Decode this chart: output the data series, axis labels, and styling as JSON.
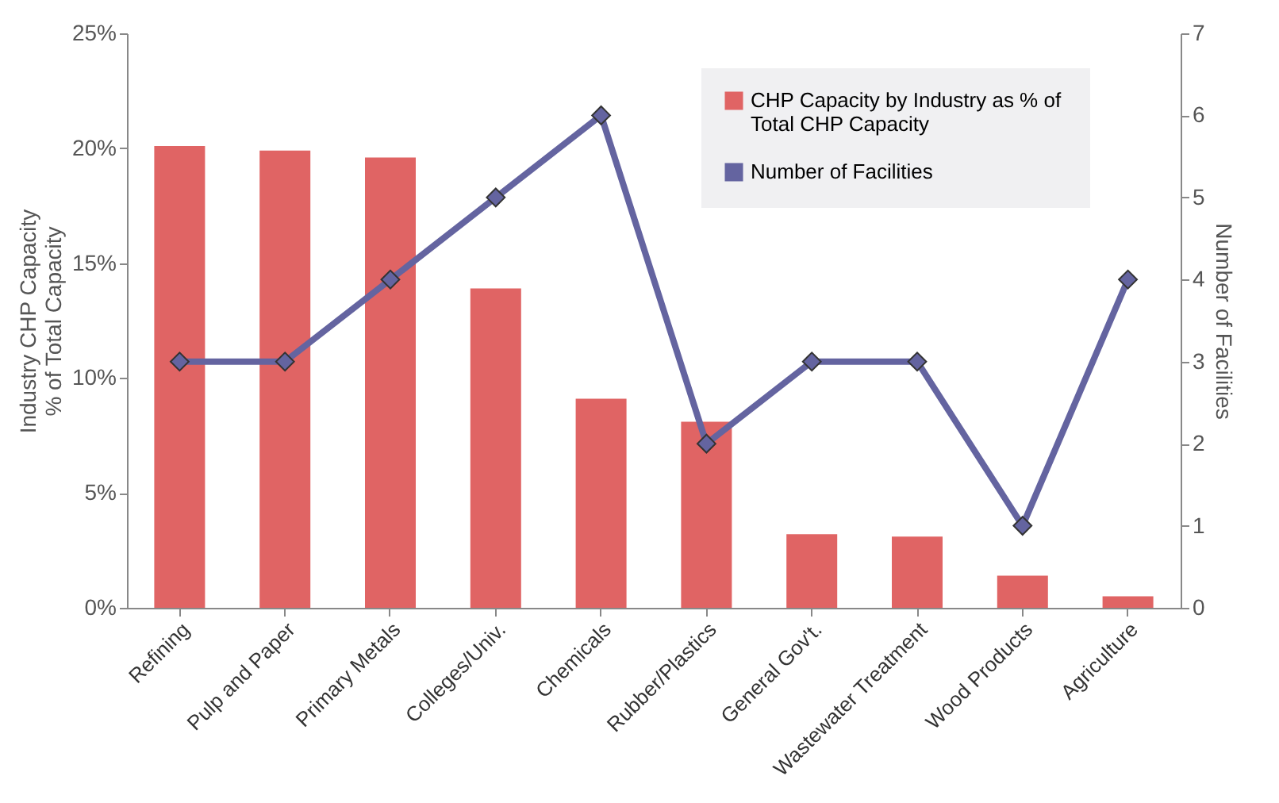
{
  "chart_data": {
    "type": "bar",
    "ylabel": "Industry CHP Capacity\n% of Total Capacity",
    "y2label": "Number of Facilities",
    "categories": [
      "Refining",
      "Pulp and Paper",
      "Primary Metals",
      "Colleges/Univ.",
      "Chemicals",
      "Rubber/Plastics",
      "General Gov't.",
      "Wastewater Treatment",
      "Wood Products",
      "Agriculture"
    ],
    "series": [
      {
        "name": "CHP Capacity by Industry  as % of Total CHP Capacity",
        "color": "#e06464",
        "values": [
          20.1,
          19.9,
          19.6,
          13.9,
          9.1,
          8.1,
          3.2,
          3.1,
          1.4,
          0.5
        ]
      },
      {
        "name": "Number of Facilities",
        "type": "line",
        "axis": "y2",
        "color": "#6464a0",
        "marker": "diamond",
        "values": [
          3,
          3,
          4,
          5,
          6,
          2,
          3,
          3,
          1,
          4
        ]
      }
    ],
    "ylim": [
      0,
      25
    ],
    "yticks": [
      {
        "value": 0,
        "label": "0%"
      },
      {
        "value": 5,
        "label": "5%"
      },
      {
        "value": 10,
        "label": "10%"
      },
      {
        "value": 15,
        "label": "15%"
      },
      {
        "value": 20,
        "label": "20%"
      },
      {
        "value": 25,
        "label": "25%"
      }
    ],
    "y2lim": [
      0,
      7
    ],
    "y2ticks": [
      0,
      1,
      2,
      3,
      4,
      5,
      6,
      7
    ],
    "legend": "top right",
    "grid": false
  }
}
